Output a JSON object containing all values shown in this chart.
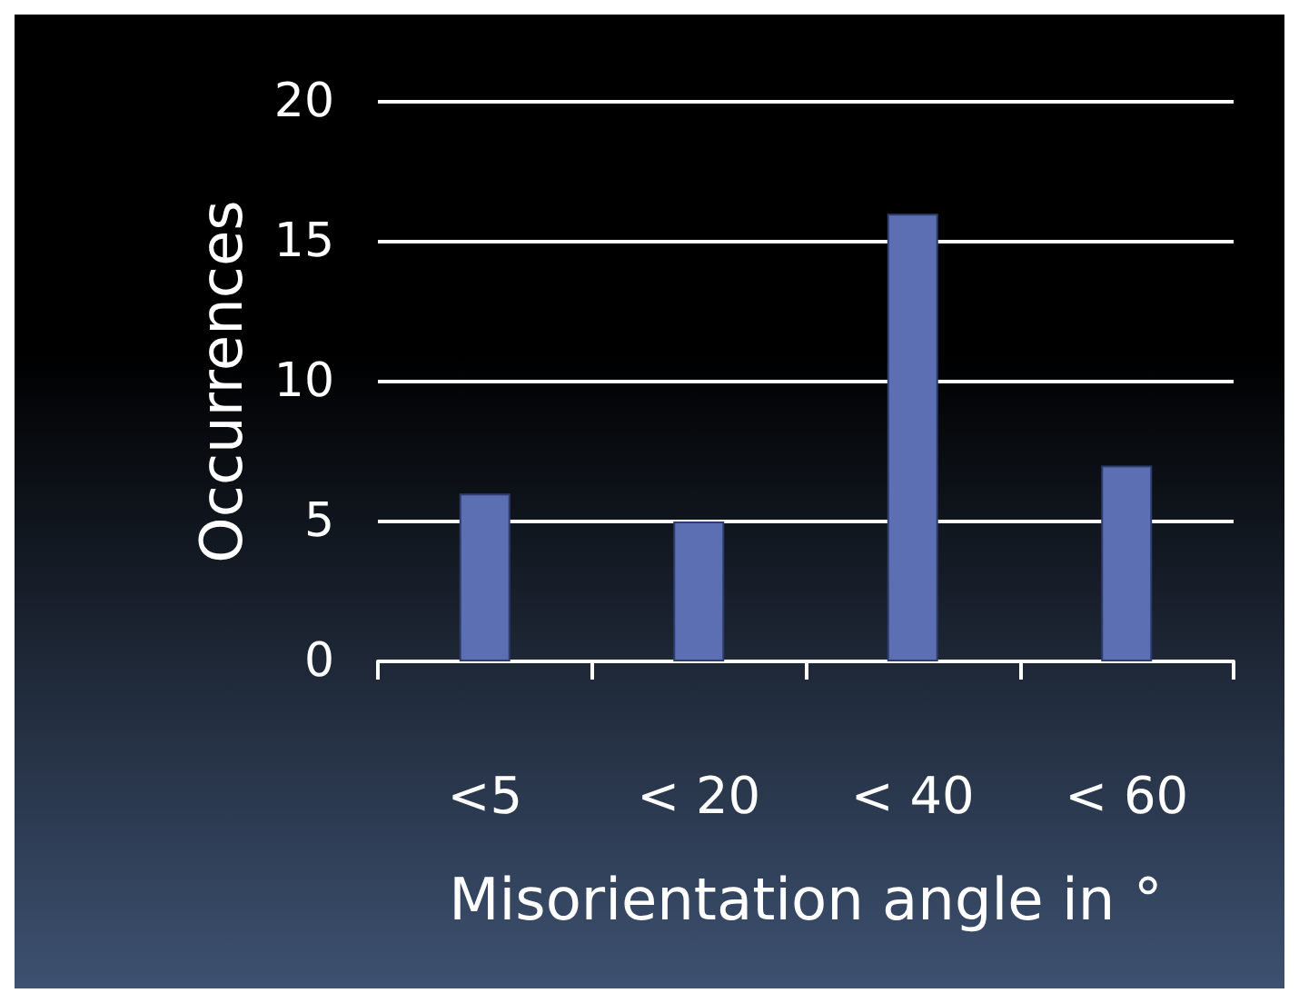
{
  "chart_data": {
    "type": "bar",
    "xlabel": "Misorientation angle in °",
    "ylabel": "Occurrences",
    "categories": [
      "<5",
      "< 20",
      "< 40",
      "< 60"
    ],
    "values": [
      6,
      5,
      16,
      7
    ],
    "color": "#5b6fb2",
    "ylim": [
      0,
      20
    ],
    "yticks": [
      0,
      5,
      10,
      15,
      20
    ],
    "grid": "y"
  }
}
